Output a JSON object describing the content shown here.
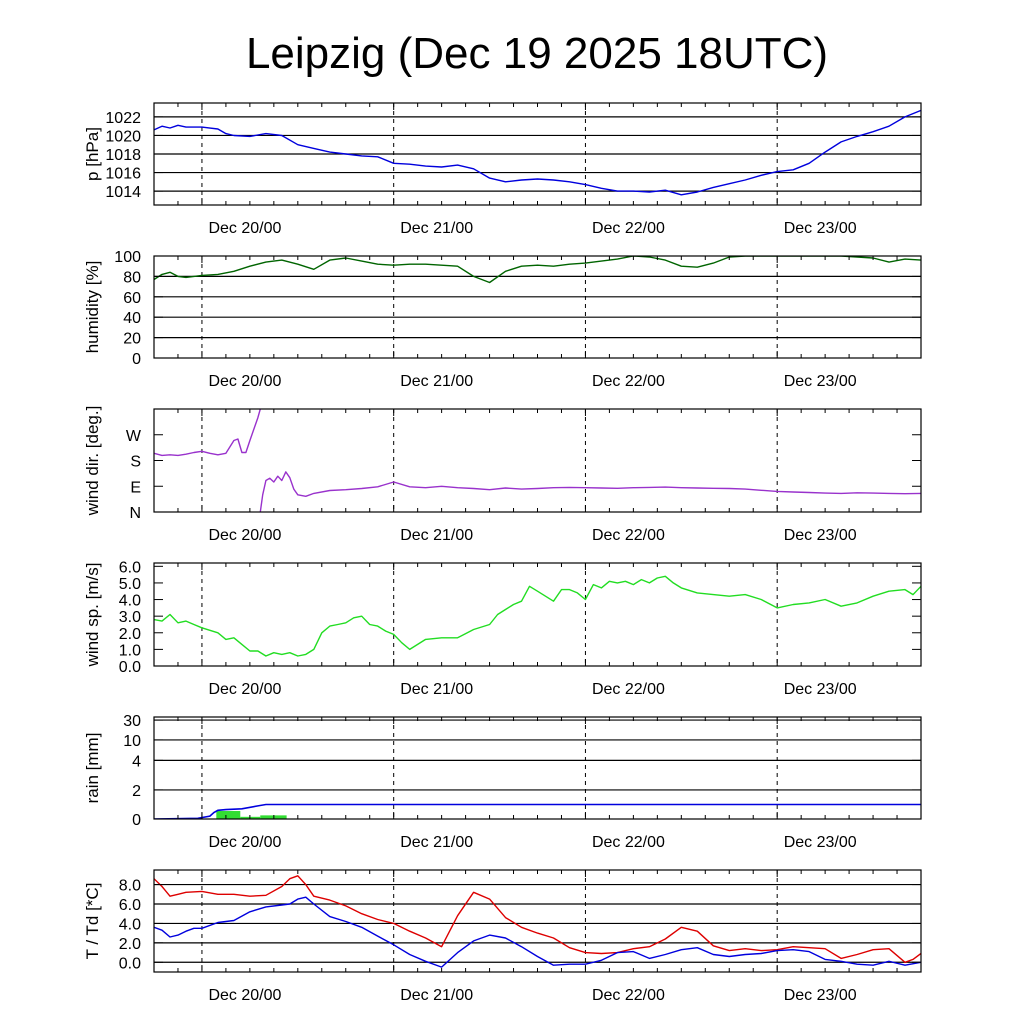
{
  "title": "Leipzig (Dec 19 2025 18UTC)",
  "x_axis": {
    "start_hours_from_dec19_18utc": 0,
    "end_hours_from_dec19_18utc": 96,
    "day_marks": [
      {
        "label": "Dec 20/00",
        "hour": 6
      },
      {
        "label": "Dec 21/00",
        "hour": 30
      },
      {
        "label": "Dec 22/00",
        "hour": 54
      },
      {
        "label": "Dec 23/00",
        "hour": 78
      }
    ]
  },
  "chart_data": [
    {
      "id": "pressure",
      "type": "line",
      "ylabel": "p [hPa]",
      "ylim": [
        1012.5,
        1023.5
      ],
      "yticks": [
        "1014",
        "1016",
        "1018",
        "1020",
        "1022"
      ],
      "yticks_values": [
        1014,
        1016,
        1018,
        1020,
        1022
      ],
      "grid": "horizontal",
      "color": "#0000dd",
      "series": [
        {
          "name": "pressure",
          "x": [
            0,
            1,
            2,
            3,
            4,
            6,
            8,
            9,
            10,
            12,
            14,
            16,
            18,
            20,
            22,
            24,
            26,
            28,
            30,
            32,
            34,
            36,
            38,
            40,
            42,
            44,
            46,
            48,
            50,
            52,
            54,
            56,
            58,
            60,
            62,
            64,
            66,
            68,
            70,
            72,
            74,
            76,
            78,
            80,
            82,
            84,
            86,
            88,
            90,
            92,
            94,
            96
          ],
          "y": [
            1020.6,
            1021.0,
            1020.8,
            1021.1,
            1020.9,
            1020.9,
            1020.7,
            1020.2,
            1020.0,
            1019.9,
            1020.2,
            1020.0,
            1019.0,
            1018.6,
            1018.2,
            1018.0,
            1017.8,
            1017.7,
            1017.0,
            1016.9,
            1016.7,
            1016.6,
            1016.8,
            1016.4,
            1015.4,
            1015.0,
            1015.2,
            1015.3,
            1015.2,
            1015.0,
            1014.7,
            1014.3,
            1014.0,
            1014.0,
            1013.9,
            1014.1,
            1013.6,
            1013.9,
            1014.4,
            1014.8,
            1015.2,
            1015.7,
            1016.1,
            1016.3,
            1017.0,
            1018.2,
            1019.3,
            1019.9,
            1020.4,
            1021.0,
            1022.0,
            1022.7
          ]
        }
      ]
    },
    {
      "id": "humidity",
      "type": "line",
      "ylabel": "humidity [%]",
      "ylim": [
        0,
        100
      ],
      "yticks": [
        "0",
        "20",
        "40",
        "60",
        "80",
        "100"
      ],
      "yticks_values": [
        0,
        20,
        40,
        60,
        80,
        100
      ],
      "grid": "horizontal",
      "color": "#006400",
      "series": [
        {
          "name": "humidity",
          "x": [
            0,
            1,
            2,
            3,
            4,
            6,
            8,
            10,
            12,
            14,
            16,
            18,
            20,
            22,
            24,
            26,
            28,
            30,
            32,
            34,
            36,
            38,
            40,
            42,
            44,
            46,
            48,
            50,
            52,
            54,
            56,
            58,
            60,
            62,
            64,
            66,
            68,
            70,
            72,
            74,
            76,
            78,
            80,
            82,
            84,
            86,
            88,
            90,
            92,
            94,
            96
          ],
          "y": [
            77,
            82,
            84,
            80,
            79,
            81,
            82,
            85,
            90,
            94,
            96,
            92,
            87,
            96,
            98,
            95,
            92,
            91,
            92,
            92,
            91,
            90,
            80,
            74,
            85,
            90,
            91,
            90,
            92,
            93,
            95,
            97,
            100,
            99,
            96,
            90,
            89,
            93,
            99,
            100,
            100,
            100,
            100,
            100,
            100,
            100,
            99,
            98,
            94,
            97,
            96
          ]
        }
      ]
    },
    {
      "id": "wind_direction",
      "type": "line",
      "ylabel": "wind dir. [deg.]",
      "ylim": [
        0,
        360
      ],
      "yticks": [
        "N",
        "E",
        "S",
        "W"
      ],
      "yticks_values": [
        0,
        90,
        180,
        270
      ],
      "grid": "none",
      "color": "#9932cc",
      "series": [
        {
          "name": "wind direction (part 1)",
          "x": [
            0,
            1,
            2,
            3,
            4,
            5,
            6,
            7,
            8,
            9,
            10,
            10.5,
            11,
            11.5,
            12,
            13,
            13.3
          ],
          "y": [
            205,
            198,
            200,
            198,
            202,
            208,
            212,
            205,
            200,
            205,
            250,
            255,
            208,
            208,
            250,
            330,
            360
          ]
        },
        {
          "name": "wind direction (part 2)",
          "x": [
            13.3,
            13.6,
            14,
            14.5,
            15,
            15.5,
            16,
            16.5,
            17,
            17.5,
            18,
            19,
            20,
            22,
            24,
            26,
            28,
            30,
            32,
            34,
            36,
            38,
            40,
            42,
            44,
            46,
            48,
            50,
            52,
            54,
            56,
            58,
            60,
            62,
            64,
            66,
            68,
            70,
            72,
            74,
            76,
            78,
            80,
            82,
            84,
            86,
            88,
            90,
            92,
            94,
            96
          ],
          "y": [
            0,
            60,
            110,
            118,
            105,
            125,
            110,
            140,
            120,
            80,
            60,
            55,
            65,
            75,
            78,
            82,
            88,
            105,
            88,
            85,
            90,
            85,
            82,
            78,
            84,
            80,
            82,
            85,
            86,
            85,
            84,
            83,
            85,
            86,
            87,
            85,
            84,
            83,
            82,
            80,
            76,
            72,
            70,
            68,
            66,
            65,
            67,
            66,
            65,
            64,
            65
          ]
        }
      ]
    },
    {
      "id": "wind_speed",
      "type": "line",
      "ylabel": "wind sp. [m/s]",
      "ylim": [
        0,
        6.2
      ],
      "yticks": [
        "0.0",
        "1.0",
        "2.0",
        "3.0",
        "4.0",
        "5.0",
        "6.0"
      ],
      "yticks_values": [
        0,
        1,
        2,
        3,
        4,
        5,
        6
      ],
      "grid": "none",
      "color": "#22dd22",
      "series": [
        {
          "name": "wind speed",
          "x": [
            0,
            1,
            2,
            3,
            4,
            5,
            6,
            8,
            9,
            10,
            11,
            12,
            13,
            14,
            15,
            16,
            17,
            18,
            19,
            20,
            21,
            22,
            23,
            24,
            25,
            26,
            27,
            28,
            29,
            30,
            31,
            32,
            34,
            36,
            38,
            40,
            42,
            43,
            44,
            45,
            46,
            47,
            48,
            49,
            50,
            51,
            52,
            53,
            54,
            55,
            56,
            57,
            58,
            59,
            60,
            61,
            62,
            63,
            64,
            65,
            66,
            68,
            70,
            72,
            74,
            76,
            78,
            80,
            82,
            84,
            86,
            88,
            90,
            92,
            94,
            95,
            96
          ],
          "y": [
            2.8,
            2.7,
            3.1,
            2.6,
            2.7,
            2.5,
            2.3,
            2.0,
            1.6,
            1.7,
            1.3,
            0.9,
            0.9,
            0.6,
            0.8,
            0.7,
            0.8,
            0.6,
            0.7,
            1.0,
            2.0,
            2.4,
            2.5,
            2.6,
            2.9,
            3.0,
            2.5,
            2.4,
            2.1,
            1.9,
            1.4,
            1.0,
            1.6,
            1.7,
            1.7,
            2.2,
            2.5,
            3.1,
            3.4,
            3.7,
            3.9,
            4.8,
            4.5,
            4.2,
            3.9,
            4.6,
            4.6,
            4.4,
            4.0,
            4.9,
            4.7,
            5.1,
            5.0,
            5.1,
            4.9,
            5.2,
            5.0,
            5.3,
            5.4,
            5.0,
            4.7,
            4.4,
            4.3,
            4.2,
            4.3,
            4.0,
            3.5,
            3.7,
            3.8,
            4.0,
            3.6,
            3.8,
            4.2,
            4.5,
            4.6,
            4.3,
            4.8
          ]
        }
      ]
    },
    {
      "id": "rain",
      "type": "bar+line",
      "ylabel": "rain [mm]",
      "scale": "nonlinear",
      "ylim": [
        0,
        30
      ],
      "yticks": [
        "0",
        "2",
        "4",
        "10",
        "30"
      ],
      "yticks_values": [
        0,
        2,
        4,
        10,
        30
      ],
      "grid": "horizontal",
      "line_color": "#0000dd",
      "bar_color": "#33dd33",
      "accumulated": {
        "x": [
          0,
          5.5,
          7,
          7.5,
          8,
          9,
          11,
          13,
          14,
          96
        ],
        "y": [
          0,
          0.05,
          0.2,
          0.45,
          0.6,
          0.65,
          0.7,
          0.9,
          1.0,
          1.0
        ]
      },
      "bars": [
        {
          "x0": 7.8,
          "x1": 10.8,
          "y": 0.55
        },
        {
          "x0": 10.8,
          "x1": 13.3,
          "y": 0.15
        },
        {
          "x0": 13.3,
          "x1": 16.6,
          "y": 0.25
        }
      ]
    },
    {
      "id": "temperature",
      "type": "line",
      "ylabel": "T / Td [*C]",
      "ylim": [
        -1.0,
        9.5
      ],
      "yticks": [
        "0.0",
        "2.0",
        "4.0",
        "6.0",
        "8.0"
      ],
      "yticks_values": [
        0,
        2,
        4,
        6,
        8
      ],
      "grid": "horizontal",
      "series": [
        {
          "name": "T",
          "color": "#dd0000",
          "x": [
            0,
            1,
            2,
            3,
            4,
            6,
            8,
            10,
            12,
            14,
            16,
            17,
            18,
            19,
            20,
            22,
            24,
            26,
            28,
            30,
            32,
            34,
            36,
            38,
            40,
            42,
            44,
            46,
            48,
            50,
            52,
            54,
            56,
            58,
            60,
            62,
            64,
            66,
            68,
            70,
            72,
            74,
            76,
            78,
            80,
            82,
            84,
            86,
            88,
            90,
            92,
            94,
            95,
            96
          ],
          "y": [
            8.6,
            7.8,
            6.8,
            7.0,
            7.2,
            7.3,
            7.0,
            7.0,
            6.8,
            6.9,
            7.8,
            8.6,
            8.9,
            8.0,
            6.8,
            6.4,
            5.8,
            5.0,
            4.4,
            4.0,
            3.2,
            2.5,
            1.6,
            4.8,
            7.2,
            6.5,
            4.6,
            3.6,
            3.0,
            2.5,
            1.5,
            1.0,
            0.9,
            1.0,
            1.4,
            1.6,
            2.4,
            3.6,
            3.2,
            1.7,
            1.2,
            1.4,
            1.2,
            1.3,
            1.6,
            1.5,
            1.4,
            0.4,
            0.8,
            1.3,
            1.4,
            0.0,
            0.3,
            0.9
          ]
        },
        {
          "name": "Td",
          "color": "#0000dd",
          "x": [
            0,
            1,
            2,
            3,
            4,
            5,
            6,
            8,
            10,
            12,
            14,
            16,
            17,
            18,
            19,
            20,
            22,
            24,
            26,
            28,
            30,
            32,
            34,
            36,
            38,
            40,
            42,
            44,
            46,
            48,
            50,
            52,
            54,
            56,
            58,
            60,
            62,
            64,
            66,
            68,
            70,
            72,
            74,
            76,
            78,
            80,
            82,
            84,
            86,
            88,
            90,
            92,
            94,
            96
          ],
          "y": [
            3.6,
            3.3,
            2.6,
            2.8,
            3.2,
            3.5,
            3.5,
            4.1,
            4.3,
            5.2,
            5.7,
            5.9,
            6.0,
            6.5,
            6.7,
            6.0,
            4.7,
            4.2,
            3.6,
            2.7,
            1.8,
            0.8,
            0.1,
            -0.5,
            1.0,
            2.2,
            2.8,
            2.5,
            1.6,
            0.6,
            -0.3,
            -0.2,
            -0.2,
            0.2,
            1.0,
            1.1,
            0.4,
            0.8,
            1.3,
            1.5,
            0.8,
            0.6,
            0.8,
            0.9,
            1.2,
            1.3,
            1.1,
            0.3,
            0.1,
            -0.2,
            -0.3,
            0.1,
            -0.3,
            0.0
          ]
        }
      ]
    }
  ]
}
